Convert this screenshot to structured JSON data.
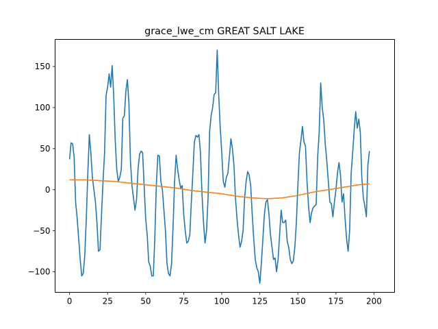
{
  "chart_data": {
    "type": "line",
    "title": "grace_lwe_cm GREAT SALT LAKE",
    "xlabel": "",
    "ylabel": "",
    "xlim": [
      -9.5,
      213.5
    ],
    "ylim": [
      -125,
      183
    ],
    "xticks": [
      0,
      25,
      50,
      75,
      100,
      125,
      150,
      175,
      200
    ],
    "yticks": [
      -100,
      -50,
      0,
      50,
      100,
      150
    ],
    "grid": false,
    "series": [
      {
        "color": "#1f77b4",
        "points": [
          [
            0,
            37
          ],
          [
            1,
            57
          ],
          [
            2,
            56
          ],
          [
            3,
            40
          ],
          [
            4,
            -15
          ],
          [
            5,
            -35
          ],
          [
            6,
            -60
          ],
          [
            7,
            -85
          ],
          [
            8,
            -105
          ],
          [
            9,
            -102
          ],
          [
            10,
            -80
          ],
          [
            11,
            -35
          ],
          [
            12,
            20
          ],
          [
            13,
            67
          ],
          [
            14,
            45
          ],
          [
            15,
            15
          ],
          [
            16,
            0
          ],
          [
            17,
            -15
          ],
          [
            18,
            -40
          ],
          [
            19,
            -75
          ],
          [
            20,
            -73
          ],
          [
            21,
            -30
          ],
          [
            22,
            10
          ],
          [
            23,
            45
          ],
          [
            24,
            115
          ],
          [
            25,
            125
          ],
          [
            26,
            141
          ],
          [
            27,
            125
          ],
          [
            28,
            151
          ],
          [
            29,
            115
          ],
          [
            30,
            60
          ],
          [
            31,
            25
          ],
          [
            32,
            10
          ],
          [
            33,
            15
          ],
          [
            34,
            25
          ],
          [
            35,
            87
          ],
          [
            36,
            90
          ],
          [
            37,
            120
          ],
          [
            38,
            134
          ],
          [
            39,
            105
          ],
          [
            40,
            35
          ],
          [
            41,
            5
          ],
          [
            42,
            -10
          ],
          [
            43,
            -25
          ],
          [
            44,
            -12
          ],
          [
            45,
            25
          ],
          [
            46,
            43
          ],
          [
            47,
            47
          ],
          [
            48,
            45
          ],
          [
            49,
            5
          ],
          [
            50,
            -35
          ],
          [
            51,
            -55
          ],
          [
            52,
            -88
          ],
          [
            53,
            -93
          ],
          [
            54,
            -105
          ],
          [
            55,
            -105
          ],
          [
            56,
            -60
          ],
          [
            57,
            5
          ],
          [
            58,
            42
          ],
          [
            59,
            41
          ],
          [
            60,
            10
          ],
          [
            61,
            0
          ],
          [
            62,
            -25
          ],
          [
            63,
            -50
          ],
          [
            64,
            -90
          ],
          [
            65,
            -102
          ],
          [
            66,
            -105
          ],
          [
            67,
            -90
          ],
          [
            68,
            -45
          ],
          [
            69,
            10
          ],
          [
            70,
            42
          ],
          [
            71,
            25
          ],
          [
            72,
            12
          ],
          [
            73,
            2
          ],
          [
            74,
            5
          ],
          [
            75,
            -30
          ],
          [
            76,
            -50
          ],
          [
            77,
            -65
          ],
          [
            78,
            -63
          ],
          [
            79,
            -55
          ],
          [
            80,
            -15
          ],
          [
            81,
            20
          ],
          [
            82,
            58
          ],
          [
            83,
            66
          ],
          [
            84,
            64
          ],
          [
            85,
            67
          ],
          [
            86,
            45
          ],
          [
            87,
            -5
          ],
          [
            88,
            -40
          ],
          [
            89,
            -65
          ],
          [
            90,
            -50
          ],
          [
            91,
            -10
          ],
          [
            92,
            70
          ],
          [
            93,
            90
          ],
          [
            94,
            100
          ],
          [
            95,
            116
          ],
          [
            96,
            118
          ],
          [
            97,
            170
          ],
          [
            98,
            115
          ],
          [
            99,
            75
          ],
          [
            100,
            45
          ],
          [
            101,
            10
          ],
          [
            102,
            3
          ],
          [
            103,
            15
          ],
          [
            104,
            20
          ],
          [
            105,
            40
          ],
          [
            106,
            62
          ],
          [
            107,
            50
          ],
          [
            108,
            30
          ],
          [
            109,
            -10
          ],
          [
            110,
            -35
          ],
          [
            111,
            -55
          ],
          [
            112,
            -70
          ],
          [
            113,
            -63
          ],
          [
            114,
            -50
          ],
          [
            115,
            -10
          ],
          [
            116,
            10
          ],
          [
            117,
            22
          ],
          [
            118,
            18
          ],
          [
            119,
            5
          ],
          [
            120,
            -30
          ],
          [
            121,
            -60
          ],
          [
            122,
            -85
          ],
          [
            123,
            -95
          ],
          [
            124,
            -100
          ],
          [
            125,
            -114
          ],
          [
            126,
            -90
          ],
          [
            127,
            -60
          ],
          [
            128,
            -30
          ],
          [
            129,
            -15
          ],
          [
            130,
            -12
          ],
          [
            131,
            -30
          ],
          [
            132,
            -55
          ],
          [
            133,
            -70
          ],
          [
            134,
            -85
          ],
          [
            135,
            -83
          ],
          [
            136,
            -100
          ],
          [
            137,
            -85
          ],
          [
            138,
            -55
          ],
          [
            139,
            -25
          ],
          [
            140,
            -40
          ],
          [
            141,
            -40
          ],
          [
            142,
            -37
          ],
          [
            143,
            -63
          ],
          [
            144,
            -70
          ],
          [
            145,
            -85
          ],
          [
            146,
            -90
          ],
          [
            147,
            -87
          ],
          [
            148,
            -70
          ],
          [
            149,
            -40
          ],
          [
            150,
            5
          ],
          [
            151,
            45
          ],
          [
            152,
            60
          ],
          [
            153,
            77
          ],
          [
            154,
            58
          ],
          [
            155,
            53
          ],
          [
            156,
            10
          ],
          [
            157,
            -20
          ],
          [
            158,
            -40
          ],
          [
            159,
            -28
          ],
          [
            160,
            -22
          ],
          [
            161,
            -20
          ],
          [
            162,
            -18
          ],
          [
            163,
            40
          ],
          [
            164,
            70
          ],
          [
            165,
            130
          ],
          [
            166,
            100
          ],
          [
            167,
            85
          ],
          [
            168,
            55
          ],
          [
            169,
            35
          ],
          [
            170,
            10
          ],
          [
            171,
            -15
          ],
          [
            172,
            -17
          ],
          [
            173,
            -33
          ],
          [
            174,
            -15
          ],
          [
            175,
            0
          ],
          [
            176,
            20
          ],
          [
            177,
            33
          ],
          [
            178,
            18
          ],
          [
            179,
            -15
          ],
          [
            180,
            -5
          ],
          [
            181,
            -35
          ],
          [
            182,
            -60
          ],
          [
            183,
            -75
          ],
          [
            184,
            -50
          ],
          [
            185,
            20
          ],
          [
            186,
            45
          ],
          [
            187,
            73
          ],
          [
            188,
            95
          ],
          [
            189,
            75
          ],
          [
            190,
            86
          ],
          [
            191,
            70
          ],
          [
            192,
            15
          ],
          [
            193,
            -10
          ],
          [
            194,
            -20
          ],
          [
            195,
            -33
          ],
          [
            196,
            30
          ],
          [
            197,
            47
          ]
        ]
      },
      {
        "color": "#ff7f0e",
        "points": [
          [
            0,
            12
          ],
          [
            10,
            12
          ],
          [
            20,
            11
          ],
          [
            30,
            10
          ],
          [
            40,
            8
          ],
          [
            50,
            6
          ],
          [
            60,
            4
          ],
          [
            70,
            2
          ],
          [
            80,
            -1
          ],
          [
            90,
            -3
          ],
          [
            100,
            -5
          ],
          [
            110,
            -8
          ],
          [
            120,
            -10
          ],
          [
            130,
            -11
          ],
          [
            140,
            -10
          ],
          [
            150,
            -7
          ],
          [
            160,
            -3
          ],
          [
            170,
            0
          ],
          [
            180,
            3
          ],
          [
            190,
            6
          ],
          [
            197,
            7
          ]
        ]
      }
    ]
  }
}
